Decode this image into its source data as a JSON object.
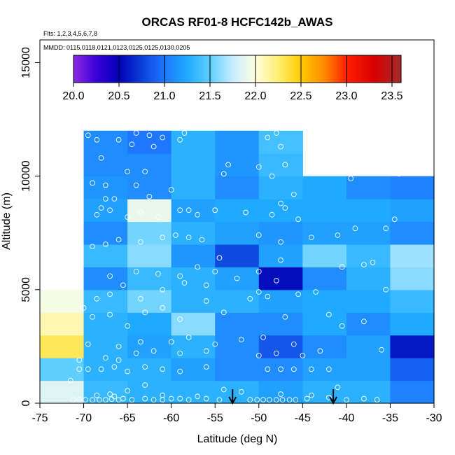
{
  "chart_data": {
    "type": "heatmap",
    "title": "ORCAS RF01-8 HCFC142b_AWAS",
    "flights_note": "Flts: 1,2,3,4,5,6,7,8",
    "dates_note": "MMDD: 0115,0118,0121,0123,0125,0125,0130,0205",
    "xlabel": "Latitude (deg N)",
    "ylabel": "Altitude (m)",
    "xlim": [
      -75,
      -30
    ],
    "ylim": [
      0,
      16000
    ],
    "x_ticks": [
      -75,
      -70,
      -65,
      -60,
      -55,
      -50,
      -45,
      -40,
      -35,
      -30
    ],
    "x_tick_labels": [
      "-75",
      "-70",
      "-65",
      "-60",
      "-55",
      "-50",
      "-45",
      "-40",
      "-35",
      "-30"
    ],
    "y_ticks": [
      0,
      5000,
      10000,
      15000
    ],
    "y_tick_labels": [
      "0",
      "5000",
      "10000",
      "15000"
    ],
    "colorbar": {
      "min": 20.0,
      "max": 23.6,
      "ticks": [
        20.0,
        20.5,
        21.0,
        21.5,
        22.0,
        22.5,
        23.0,
        23.5
      ],
      "tick_labels": [
        "20.0",
        "20.5",
        "21.0",
        "21.5",
        "22.0",
        "22.5",
        "23.0",
        "23.5"
      ],
      "stops": [
        {
          "v": 20.0,
          "c": "#8a2be2"
        },
        {
          "v": 20.25,
          "c": "#3a00d9"
        },
        {
          "v": 20.5,
          "c": "#0000b8"
        },
        {
          "v": 20.75,
          "c": "#0b3fd8"
        },
        {
          "v": 21.0,
          "c": "#1e78ff"
        },
        {
          "v": 21.25,
          "c": "#20aaff"
        },
        {
          "v": 21.5,
          "c": "#5ecfff"
        },
        {
          "v": 21.75,
          "c": "#c8ecff"
        },
        {
          "v": 22.0,
          "c": "#ffffe0"
        },
        {
          "v": 22.25,
          "c": "#ffee70"
        },
        {
          "v": 22.5,
          "c": "#ffcc00"
        },
        {
          "v": 22.75,
          "c": "#ff8c00"
        },
        {
          "v": 23.0,
          "c": "#ff2000"
        },
        {
          "v": 23.3,
          "c": "#d80000"
        },
        {
          "v": 23.6,
          "c": "#a52a2a"
        }
      ]
    },
    "grid": {
      "lat_edges": [
        -75,
        -70,
        -65,
        -60,
        -55,
        -50,
        -45,
        -40,
        -35,
        -30
      ],
      "alt_edges": [
        0,
        1000,
        2000,
        3000,
        4000,
        5000,
        6000,
        7000,
        8000,
        9000,
        10000,
        11000,
        12000
      ],
      "values": [
        [
          21.85,
          21.35,
          21.3,
          21.3,
          21.3,
          21.2,
          21.3,
          21.3,
          21.05,
          null
        ],
        [
          21.5,
          21.3,
          21.3,
          21.2,
          21.1,
          21.1,
          21.2,
          21.2,
          20.9,
          null
        ],
        [
          22.3,
          21.3,
          21.2,
          21.3,
          21.1,
          20.85,
          21.1,
          21.2,
          20.6,
          null
        ],
        [
          22.1,
          21.3,
          21.25,
          21.6,
          21.1,
          21.1,
          21.25,
          21.1,
          21.25,
          null
        ],
        [
          21.95,
          21.35,
          21.55,
          21.3,
          21.3,
          21.2,
          21.25,
          21.25,
          21.35,
          null
        ],
        [
          null,
          21.1,
          21.35,
          21.3,
          21.2,
          20.55,
          21.1,
          21.3,
          21.6,
          null
        ],
        [
          null,
          21.35,
          21.6,
          21.15,
          20.8,
          21.2,
          21.55,
          21.35,
          21.65,
          null
        ],
        [
          null,
          21.1,
          21.55,
          21.3,
          21.2,
          21.15,
          21.2,
          21.2,
          21.1,
          null
        ],
        [
          null,
          21.2,
          21.9,
          21.2,
          21.25,
          21.25,
          21.25,
          21.25,
          21.2,
          null
        ],
        [
          null,
          21.15,
          21.1,
          21.3,
          21.1,
          21.3,
          21.25,
          21.1,
          21.05,
          null
        ],
        [
          null,
          21.1,
          21.1,
          21.3,
          21.15,
          21.35,
          null,
          null,
          null,
          null
        ],
        [
          null,
          21.1,
          21.0,
          21.3,
          21.15,
          21.4,
          null,
          null,
          null,
          null
        ]
      ]
    },
    "arrows": [
      {
        "lat": -53
      },
      {
        "lat": -41.5
      }
    ],
    "samples": [
      [
        -71.2,
        150
      ],
      [
        -70.5,
        150
      ],
      [
        -69.8,
        150
      ],
      [
        -69.0,
        150
      ],
      [
        -68.2,
        150
      ],
      [
        -67.5,
        150
      ],
      [
        -66.8,
        180
      ],
      [
        -66.0,
        150
      ],
      [
        -65.5,
        200
      ],
      [
        -64.5,
        150
      ],
      [
        -63.0,
        200
      ],
      [
        -62.0,
        150
      ],
      [
        -61.0,
        150
      ],
      [
        -60.0,
        200
      ],
      [
        -59.0,
        200
      ],
      [
        -58.0,
        150
      ],
      [
        -56.0,
        200
      ],
      [
        -54.5,
        150
      ],
      [
        -51.0,
        150
      ],
      [
        -50.2,
        150
      ],
      [
        -49.5,
        150
      ],
      [
        -48.8,
        150
      ],
      [
        -48.0,
        150
      ],
      [
        -47.3,
        150
      ],
      [
        -46.5,
        150
      ],
      [
        -45.8,
        150
      ],
      [
        -44.5,
        200
      ],
      [
        -42.0,
        250
      ],
      [
        -40.0,
        150
      ],
      [
        -38.0,
        200
      ],
      [
        -36.5,
        150
      ],
      [
        -68.5,
        350
      ],
      [
        -67.0,
        400
      ],
      [
        -66.5,
        300
      ],
      [
        -65.0,
        550
      ],
      [
        -63.0,
        800
      ],
      [
        -61.0,
        350
      ],
      [
        -57.0,
        300
      ],
      [
        -54.0,
        600
      ],
      [
        -52.0,
        500
      ],
      [
        -47.5,
        400
      ],
      [
        -44.0,
        350
      ],
      [
        -41.0,
        700
      ],
      [
        -71.5,
        1000
      ],
      [
        -70.5,
        1500
      ],
      [
        -69.5,
        1500
      ],
      [
        -68.0,
        1500
      ],
      [
        -66.5,
        1600
      ],
      [
        -65.0,
        1400
      ],
      [
        -63.0,
        1600
      ],
      [
        -61.0,
        1500
      ],
      [
        -59.0,
        1400
      ],
      [
        -56.0,
        1600
      ],
      [
        -49.0,
        1500
      ],
      [
        -47.5,
        1500
      ],
      [
        -46.0,
        1500
      ],
      [
        -44.0,
        1500
      ],
      [
        -42.0,
        1500
      ],
      [
        -70.5,
        1900
      ],
      [
        -67.5,
        2000
      ],
      [
        -66.0,
        1900
      ],
      [
        -64.0,
        2200
      ],
      [
        -62.0,
        2300
      ],
      [
        -59.0,
        2200
      ],
      [
        -56.0,
        2300
      ],
      [
        -50.0,
        2100
      ],
      [
        -48.0,
        2200
      ],
      [
        -45.0,
        2100
      ],
      [
        -43.0,
        2300
      ],
      [
        -36.0,
        2350
      ],
      [
        -69.5,
        2600
      ],
      [
        -66.0,
        2500
      ],
      [
        -63.5,
        2700
      ],
      [
        -60.0,
        2700
      ],
      [
        -58.0,
        2900
      ],
      [
        -55.0,
        2600
      ],
      [
        -52.0,
        2800
      ],
      [
        -49.5,
        2900
      ],
      [
        -46.0,
        2600
      ],
      [
        -40.5,
        3400
      ],
      [
        -38.0,
        3600
      ],
      [
        -69.0,
        3800
      ],
      [
        -67.0,
        3900
      ],
      [
        -65.0,
        3400
      ],
      [
        -63.0,
        4000
      ],
      [
        -61.0,
        4200
      ],
      [
        -59.0,
        3700
      ],
      [
        -56.0,
        4500
      ],
      [
        -54.0,
        4000
      ],
      [
        -51.0,
        4600
      ],
      [
        -49.0,
        4700
      ],
      [
        -47.0,
        3800
      ],
      [
        -42.0,
        3900
      ],
      [
        -70.0,
        4200
      ],
      [
        -68.5,
        4600
      ],
      [
        -67.0,
        4800
      ],
      [
        -65.5,
        5200
      ],
      [
        -63.5,
        4600
      ],
      [
        -61.0,
        5000
      ],
      [
        -58.5,
        5300
      ],
      [
        -56.0,
        5200
      ],
      [
        -52.5,
        5500
      ],
      [
        -50.0,
        4900
      ],
      [
        -48.0,
        5400
      ],
      [
        -45.5,
        4800
      ],
      [
        -43.5,
        4900
      ],
      [
        -35.5,
        5000
      ],
      [
        -67.0,
        5600
      ],
      [
        -64.0,
        5800
      ],
      [
        -61.5,
        5700
      ],
      [
        -59.0,
        5600
      ],
      [
        -57.0,
        6000
      ],
      [
        -55.0,
        5800
      ],
      [
        -50.0,
        5800
      ],
      [
        -47.5,
        6300
      ],
      [
        -40.5,
        6000
      ],
      [
        -38.0,
        6100
      ],
      [
        -37.0,
        6200
      ],
      [
        -69.0,
        6900
      ],
      [
        -67.5,
        7000
      ],
      [
        -66.0,
        7200
      ],
      [
        -63.5,
        7100
      ],
      [
        -61.0,
        7300
      ],
      [
        -59.5,
        7400
      ],
      [
        -58.0,
        7300
      ],
      [
        -56.5,
        7200
      ],
      [
        -54.5,
        6400
      ],
      [
        -50.0,
        7400
      ],
      [
        -47.5,
        7100
      ],
      [
        -44.0,
        7300
      ],
      [
        -41.0,
        7400
      ],
      [
        -39.0,
        7700
      ],
      [
        -35.5,
        7700
      ],
      [
        -68.5,
        8300
      ],
      [
        -67.0,
        8500
      ],
      [
        -65.0,
        8200
      ],
      [
        -63.5,
        8400
      ],
      [
        -61.5,
        8200
      ],
      [
        -59.0,
        8500
      ],
      [
        -57.0,
        8300
      ],
      [
        -55.0,
        8500
      ],
      [
        -51.5,
        8400
      ],
      [
        -48.5,
        8300
      ],
      [
        -47.0,
        8600
      ],
      [
        -45.5,
        8100
      ],
      [
        -34.5,
        8100
      ],
      [
        -68.0,
        8600
      ],
      [
        -67.5,
        9000
      ],
      [
        -66.5,
        9000
      ],
      [
        -64.0,
        9600
      ],
      [
        -62.5,
        9100
      ],
      [
        -60.0,
        9400
      ],
      [
        -58.0,
        8500
      ],
      [
        -55.0,
        8500
      ],
      [
        -47.5,
        8800
      ],
      [
        -46.0,
        9200
      ],
      [
        -39.5,
        9900
      ],
      [
        -34.0,
        10100
      ],
      [
        -69.0,
        9700
      ],
      [
        -67.5,
        9600
      ],
      [
        -65.0,
        10200
      ],
      [
        -63.0,
        10200
      ],
      [
        -54.0,
        10100
      ],
      [
        -53.5,
        10500
      ],
      [
        -50.0,
        10400
      ],
      [
        -48.5,
        10000
      ],
      [
        -47.0,
        10500
      ],
      [
        -68.0,
        10800
      ],
      [
        -64.5,
        11400
      ],
      [
        -62.0,
        11300
      ],
      [
        -59.0,
        11600
      ],
      [
        -49.0,
        11700
      ],
      [
        -47.5,
        11300
      ],
      [
        -69.5,
        11800
      ],
      [
        -68.5,
        11600
      ],
      [
        -66.0,
        11600
      ],
      [
        -64.0,
        11900
      ],
      [
        -62.5,
        11800
      ],
      [
        -61.0,
        11700
      ],
      [
        -58.5,
        11900
      ],
      [
        -48.0,
        11900
      ]
    ]
  }
}
